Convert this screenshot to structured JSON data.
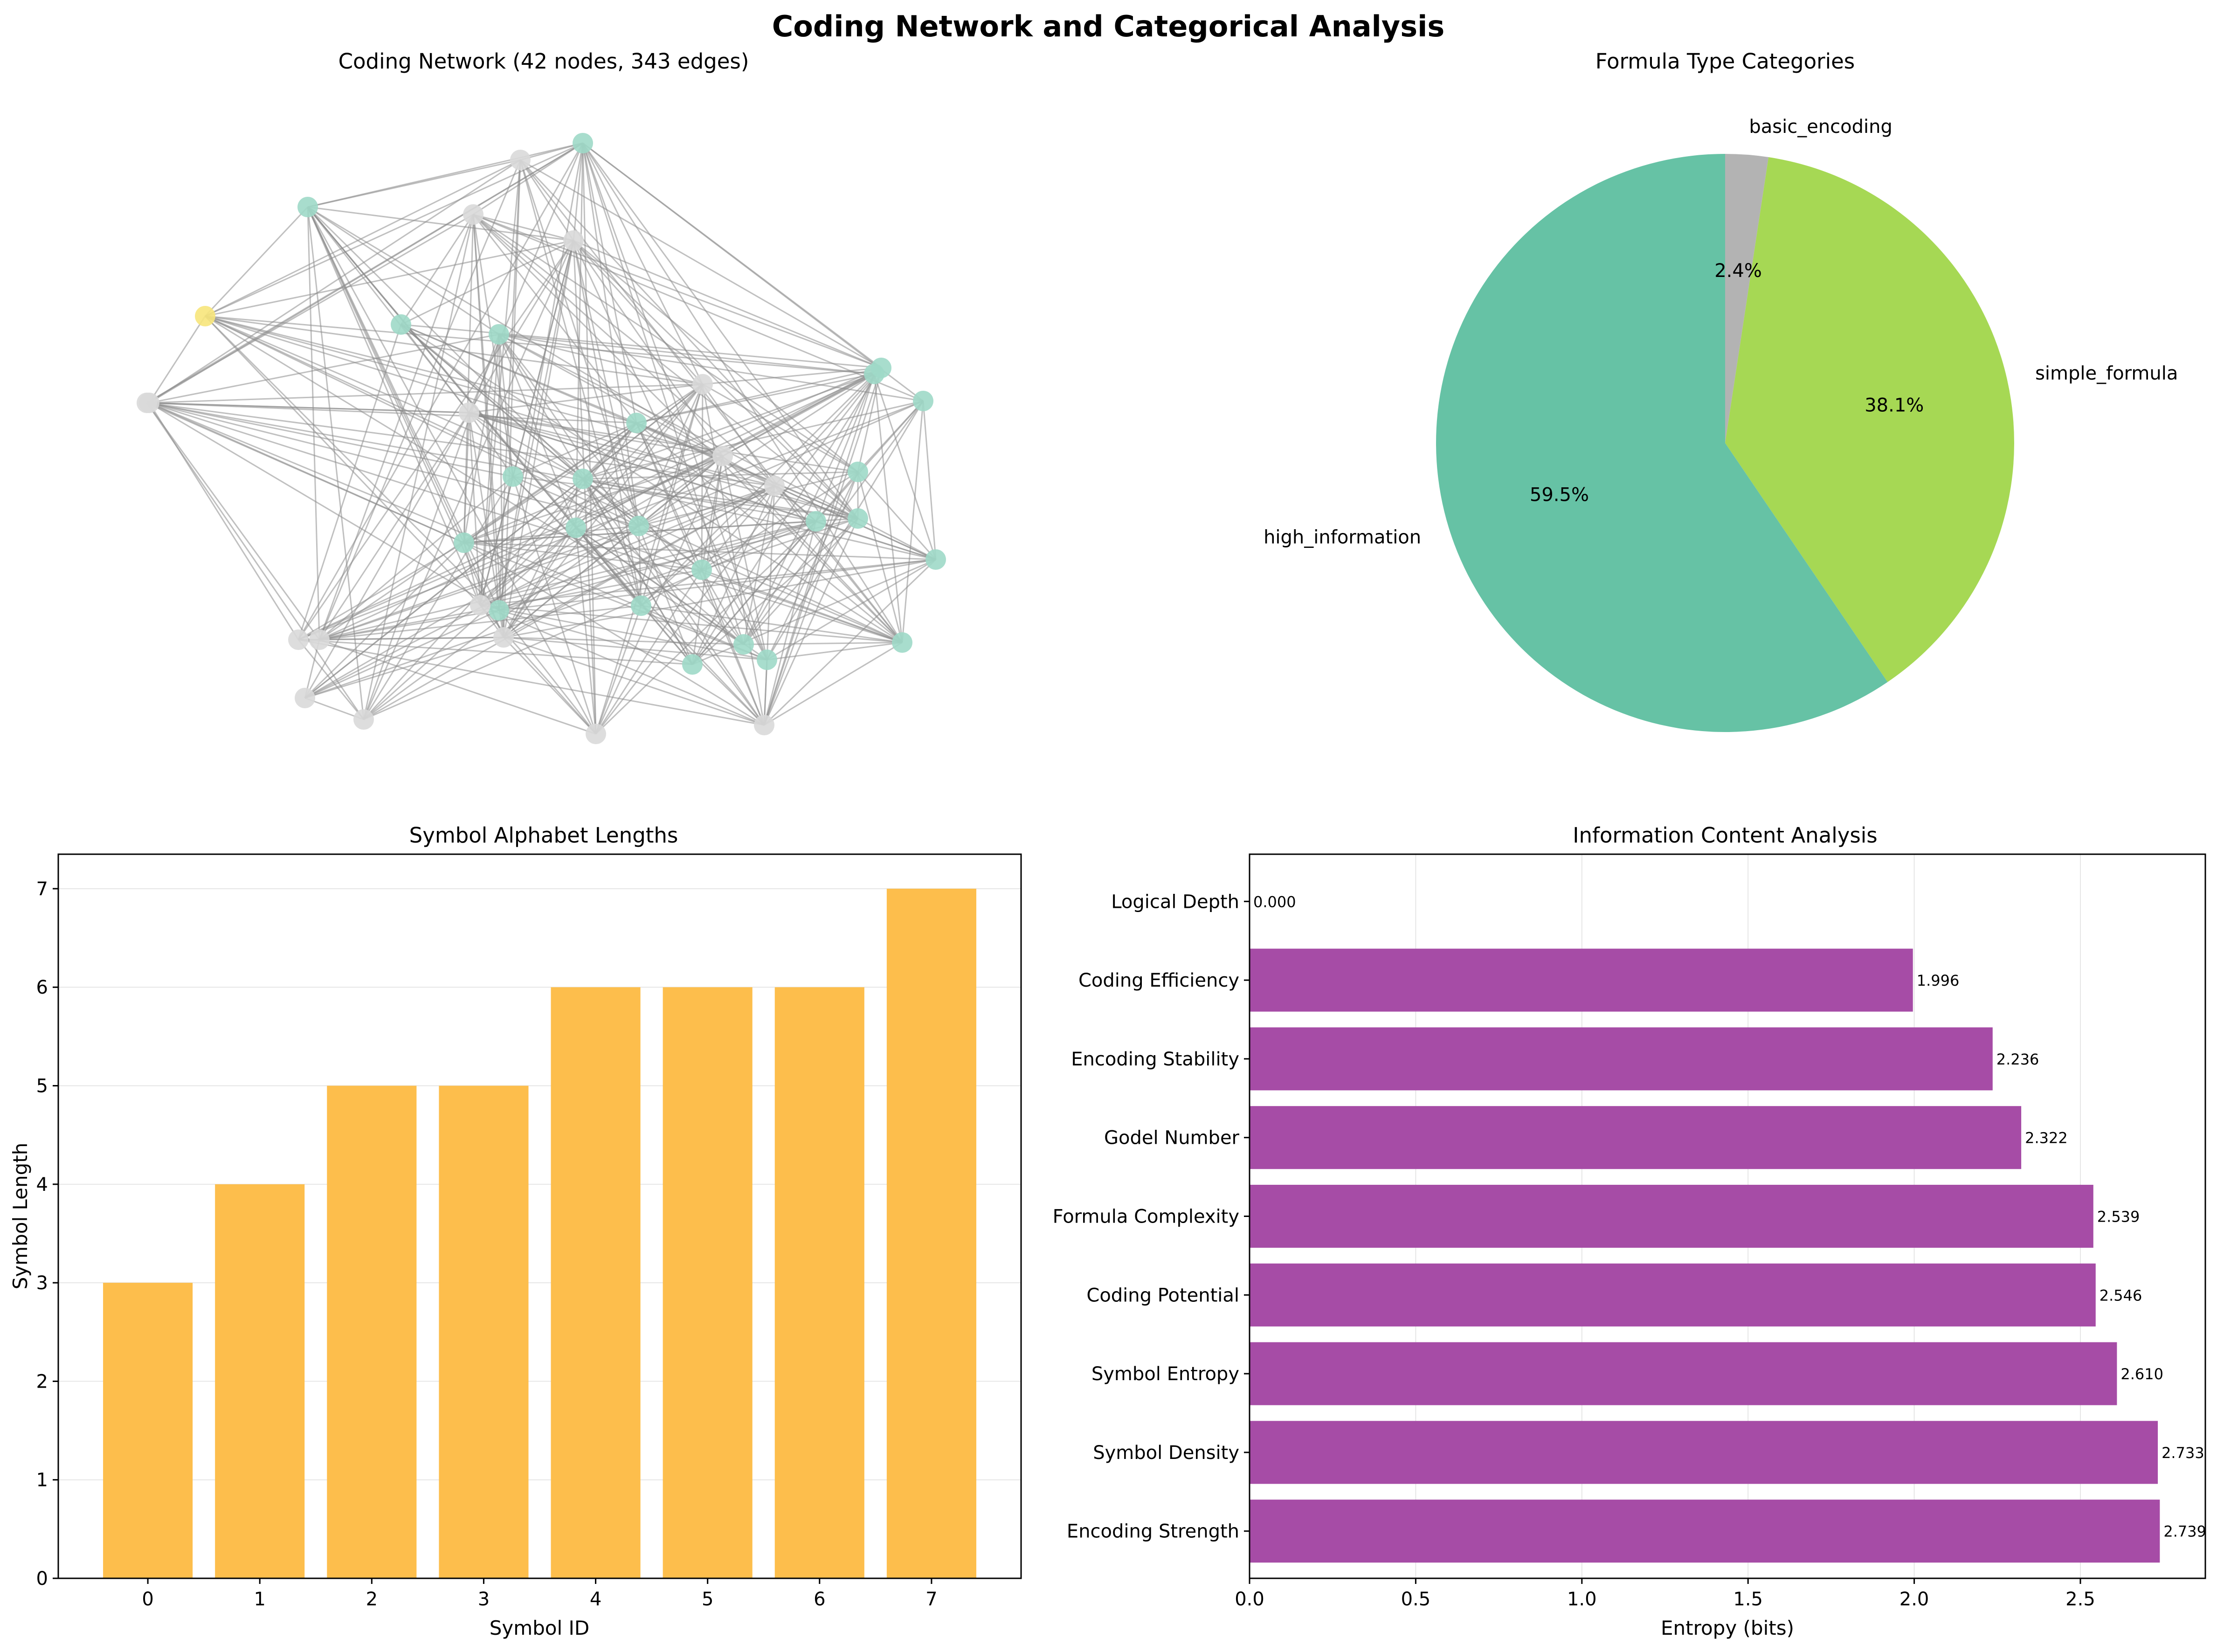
{
  "figure_title": "Coding Network and Categorical Analysis",
  "colors": {
    "network_node_main": "#9fd9c8",
    "network_node_grey": "#d9d9d9",
    "network_node_highlight": "#f7e67b",
    "network_edge": "#8c8c8c",
    "pie_high_information": "#66c2a5",
    "pie_simple_formula": "#a6d854",
    "pie_basic_encoding": "#b3b3b3",
    "bar_orange": "#fdbe4c",
    "bar_purple": "#a64ca6"
  },
  "chart_data": [
    {
      "type": "network",
      "title": "Coding Network (42 nodes, 343 edges)",
      "node_count": 42,
      "edge_count": 343
    },
    {
      "type": "pie",
      "title": "Formula Type Categories",
      "slices": [
        {
          "label": "basic_encoding",
          "pct_label": "2.4%",
          "value": 2.4,
          "color": "#b3b3b3"
        },
        {
          "label": "simple_formula",
          "pct_label": "38.1%",
          "value": 38.1,
          "color": "#a6d854"
        },
        {
          "label": "high_information",
          "pct_label": "59.5%",
          "value": 59.5,
          "color": "#66c2a5"
        }
      ]
    },
    {
      "type": "bar",
      "title": "Symbol Alphabet Lengths",
      "xlabel": "Symbol ID",
      "ylabel": "Symbol Length",
      "categories": [
        "0",
        "1",
        "2",
        "3",
        "4",
        "5",
        "6",
        "7"
      ],
      "values": [
        3,
        4,
        5,
        5,
        6,
        6,
        6,
        7
      ],
      "ylim": [
        0,
        7.35
      ],
      "yticks": [
        "0",
        "1",
        "2",
        "3",
        "4",
        "5",
        "6",
        "7"
      ],
      "grid": "y"
    },
    {
      "type": "bar",
      "orientation": "horizontal",
      "title": "Information Content Analysis",
      "xlabel": "Entropy (bits)",
      "categories": [
        "Logical Depth",
        "Coding Efficiency",
        "Encoding Stability",
        "Godel Number",
        "Formula Complexity",
        "Coding Potential",
        "Symbol Entropy",
        "Symbol Density",
        "Encoding Strength"
      ],
      "values": [
        0.0,
        1.996,
        2.236,
        2.322,
        2.539,
        2.546,
        2.61,
        2.733,
        2.739
      ],
      "value_labels": [
        "0.000",
        "1.996",
        "2.236",
        "2.322",
        "2.539",
        "2.546",
        "2.610",
        "2.733",
        "2.739"
      ],
      "xlim": [
        0,
        2.876
      ],
      "xticks": [
        "0.0",
        "0.5",
        "1.0",
        "1.5",
        "2.0",
        "2.5"
      ],
      "grid": "x"
    }
  ]
}
